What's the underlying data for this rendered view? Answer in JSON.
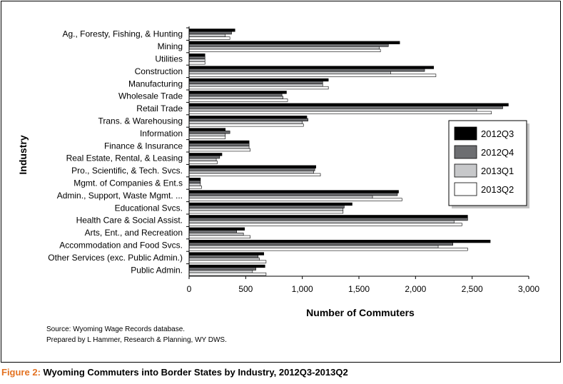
{
  "chart_data": {
    "type": "bar",
    "orientation": "horizontal",
    "xlabel": "Number of Commuters",
    "ylabel": "Industry",
    "xlim": [
      0,
      3000
    ],
    "xticks": [
      0,
      500,
      1000,
      1500,
      2000,
      2500,
      3000
    ],
    "xtick_labels": [
      "0",
      "500",
      "1,000",
      "1,500",
      "2,000",
      "2,500",
      "3,000"
    ],
    "grid": false,
    "legend_position": "right",
    "categories": [
      "Ag., Foresty, Fishing, & Hunting",
      "Mining",
      "Utilities",
      "Construction",
      "Manufacturing",
      "Wholesale Trade",
      "Retail Trade",
      "Trans. & Warehousing",
      "Information",
      "Finance & Insurance",
      "Real Estate, Rental, & Leasing",
      "Pro., Scientific, & Tech. Svcs.",
      "Mgmt. of Companies & Ent.s",
      "Admin., Support, Waste Mgmt. ...",
      "Educational Svcs.",
      "Health Care & Social Assist.",
      "Arts, Ent., and Recreation",
      "Accommodation and Food Svcs.",
      "Other Services (exc. Public Admin.)",
      "Public Admin."
    ],
    "series": [
      {
        "name": "2012Q3",
        "color": "#000000",
        "values": [
          405,
          1860,
          140,
          2160,
          1230,
          860,
          2820,
          1040,
          320,
          530,
          290,
          1120,
          100,
          1850,
          1440,
          2460,
          490,
          2660,
          660,
          670
        ]
      },
      {
        "name": "2012Q4",
        "color": "#6d6e71",
        "values": [
          375,
          1760,
          140,
          2080,
          1180,
          820,
          2770,
          1050,
          360,
          530,
          270,
          1110,
          100,
          1840,
          1370,
          2460,
          420,
          2330,
          610,
          590
        ]
      },
      {
        "name": "2013Q1",
        "color": "#c7c8ca",
        "values": [
          320,
          1680,
          140,
          1780,
          1180,
          830,
          2540,
          1000,
          320,
          530,
          240,
          1100,
          100,
          1620,
          1360,
          2340,
          480,
          2200,
          620,
          560
        ]
      },
      {
        "name": "2013Q2",
        "color": "#ffffff",
        "values": [
          360,
          1690,
          140,
          2180,
          1230,
          870,
          2670,
          1010,
          320,
          540,
          250,
          1160,
          110,
          1880,
          1360,
          2410,
          540,
          2460,
          680,
          680
        ]
      }
    ]
  },
  "source_lines": [
    "Source: Wyoming Wage Records database.",
    "Prepared by L Hammer, Research & Planning, WY DWS."
  ],
  "caption": {
    "prefix": "Figure 2:",
    "text": " Wyoming Commuters into Border States by Industry, 2012Q3-2013Q2"
  }
}
